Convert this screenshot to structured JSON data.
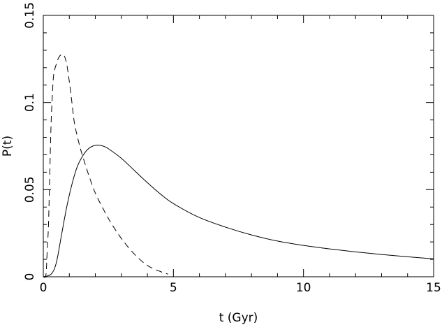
{
  "chart_data": {
    "type": "line",
    "xlabel": "t (Gyr)",
    "ylabel": "P(t)",
    "xlim": [
      0,
      15
    ],
    "ylim": [
      0,
      0.15
    ],
    "x_ticks": [
      "0",
      "5",
      "10",
      "15"
    ],
    "y_ticks": [
      "0",
      "0.05",
      "0.1",
      "0.15"
    ],
    "grid": false,
    "legend": "none",
    "series": [
      {
        "style": "solid",
        "color": "#000000",
        "x": [
          0,
          0.3,
          0.5,
          0.7,
          0.9,
          1.1,
          1.3,
          1.5,
          1.7,
          1.9,
          2.1,
          2.3,
          2.5,
          3.0,
          3.5,
          4.0,
          4.5,
          5.0,
          6.0,
          7.0,
          8.0,
          9.0,
          10.0,
          11.0,
          12.0,
          13.0,
          14.0,
          15.0
        ],
        "y": [
          0,
          0.0015,
          0.008,
          0.024,
          0.04,
          0.053,
          0.063,
          0.069,
          0.073,
          0.075,
          0.0755,
          0.075,
          0.0735,
          0.068,
          0.061,
          0.054,
          0.0475,
          0.042,
          0.034,
          0.0285,
          0.024,
          0.0205,
          0.018,
          0.016,
          0.0143,
          0.0128,
          0.0115,
          0.0103
        ]
      },
      {
        "style": "dashed",
        "color": "#000000",
        "x": [
          0,
          0.1,
          0.15,
          0.2,
          0.25,
          0.3,
          0.35,
          0.4,
          0.5,
          0.6,
          0.7,
          0.8,
          0.9,
          1.0,
          1.1,
          1.2,
          1.4,
          1.6,
          1.8,
          2.0,
          2.3,
          2.6,
          3.0,
          3.5,
          4.0,
          4.5,
          4.8
        ],
        "y": [
          0,
          0.001,
          0.015,
          0.03,
          0.06,
          0.088,
          0.105,
          0.116,
          0.122,
          0.126,
          0.1275,
          0.127,
          0.122,
          0.112,
          0.1,
          0.088,
          0.075,
          0.065,
          0.056,
          0.048,
          0.039,
          0.031,
          0.022,
          0.013,
          0.0065,
          0.003,
          0.0015
        ]
      }
    ]
  }
}
